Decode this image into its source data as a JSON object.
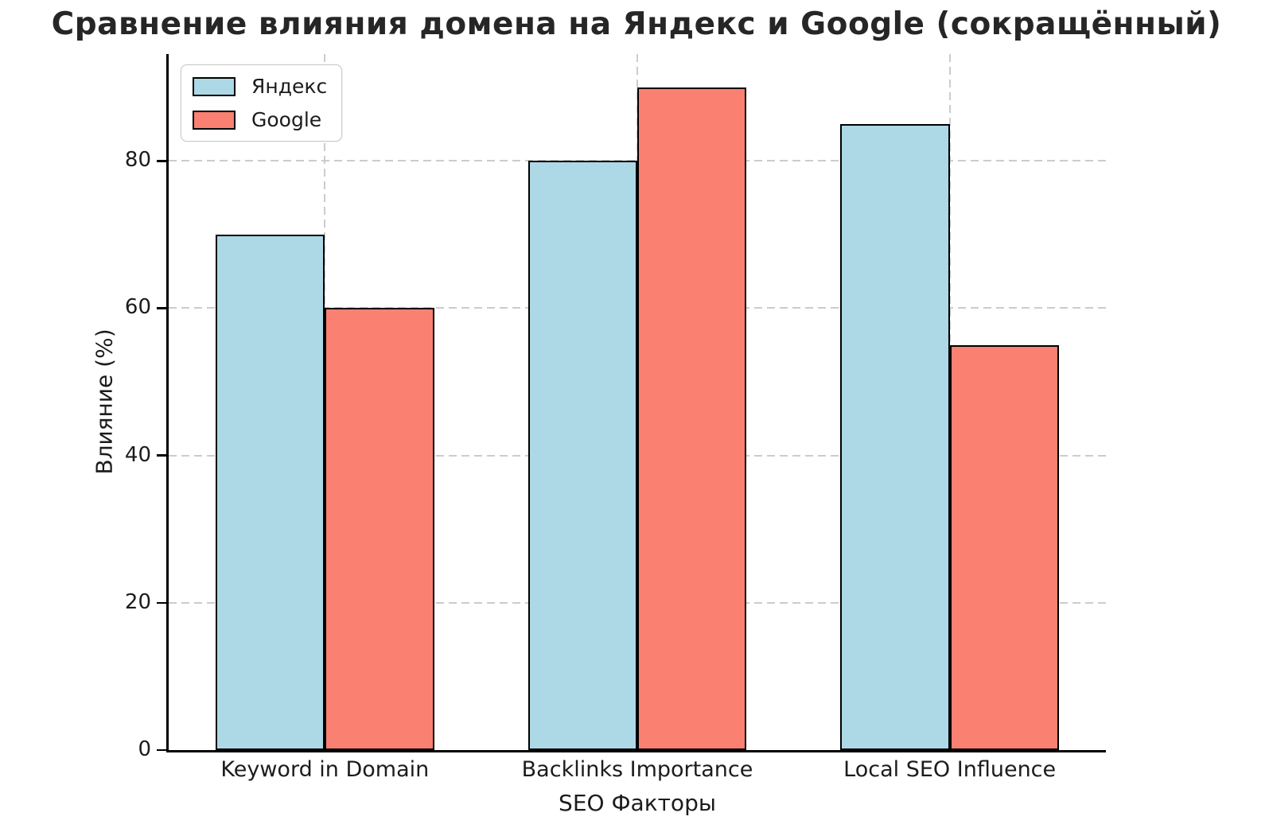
{
  "chart_data": {
    "type": "bar",
    "title": "Сравнение влияния домена на Яндекс и Google (сокращённый)",
    "xlabel": "SEO Факторы",
    "ylabel": "Влияние (%)",
    "categories": [
      "Keyword in Domain",
      "Backlinks Importance",
      "Local SEO Influence"
    ],
    "series": [
      {
        "name": "Яндекс",
        "color": "#ADD8E6",
        "values": [
          70,
          80,
          85
        ]
      },
      {
        "name": "Google",
        "color": "#FA8072",
        "values": [
          60,
          90,
          55
        ]
      }
    ],
    "yticks": [
      0,
      20,
      40,
      60,
      80
    ],
    "ylim": [
      0,
      94.5
    ],
    "bar_width_data_units": 0.35,
    "bar_edge_color": "#000000",
    "grid": {
      "show": true,
      "color": "#cccccc",
      "style": "dashed",
      "axisbelow": true
    },
    "legend": {
      "position": "upper-left"
    },
    "spines": {
      "left": true,
      "bottom": true,
      "top": false,
      "right": false
    }
  }
}
